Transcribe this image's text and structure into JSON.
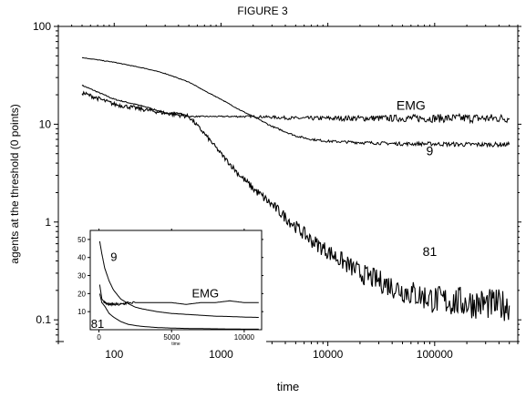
{
  "chart_data": [
    {
      "type": "line",
      "title": "FIGURE 3",
      "xlabel": "time",
      "ylabel": "agents at the threshold (0 points)",
      "x_scale": "log",
      "y_scale": "log",
      "xlim": [
        30,
        600000
      ],
      "ylim": [
        0.06,
        100
      ],
      "grid": false,
      "x_ticks": [
        100,
        1000,
        10000,
        100000
      ],
      "x_tick_labels": [
        "100",
        "1000",
        "10000",
        "100000"
      ],
      "y_ticks": [
        0.1,
        1,
        10,
        100
      ],
      "y_tick_labels": [
        "0.1",
        "1",
        "10",
        "100"
      ],
      "series": [
        {
          "name": "EMG",
          "x": [
            50,
            100,
            200,
            300,
            400,
            500,
            700,
            1000,
            1500,
            2000,
            3000,
            5000,
            10000,
            20000,
            50000,
            100000,
            200000,
            500000
          ],
          "values": [
            25,
            18,
            15,
            13,
            13,
            12,
            12,
            12,
            12,
            12,
            11.8,
            11.5,
            11.5,
            11.5,
            11.5,
            11.5,
            11.5,
            11.5
          ],
          "noise": 0.04,
          "label_x": 60000,
          "label_y": 14
        },
        {
          "name": "9",
          "x": [
            50,
            100,
            200,
            300,
            500,
            700,
            1000,
            1500,
            2000,
            3000,
            5000,
            7000,
            10000,
            20000,
            50000,
            100000,
            200000,
            500000
          ],
          "values": [
            48,
            43,
            37,
            33,
            27,
            22,
            18,
            14,
            12,
            9.5,
            7.6,
            7,
            6.7,
            6.5,
            6.3,
            6.3,
            6.2,
            6.2
          ],
          "noise": 0.02,
          "label_x": 90000,
          "label_y": 4.8
        },
        {
          "name": "81",
          "x": [
            50,
            100,
            200,
            300,
            500,
            700,
            1000,
            1500,
            2000,
            3000,
            5000,
            7000,
            10000,
            20000,
            30000,
            50000,
            100000,
            200000,
            500000
          ],
          "values": [
            21,
            16,
            14,
            13,
            12,
            8,
            5,
            3,
            2.2,
            1.5,
            0.9,
            0.65,
            0.5,
            0.3,
            0.25,
            0.2,
            0.16,
            0.15,
            0.14
          ],
          "noise": 0.14,
          "label_x": 90000,
          "label_y": 0.45
        }
      ]
    },
    {
      "type": "line",
      "title": "",
      "xlabel": "time",
      "ylabel": "",
      "xlim": [
        -600,
        11200
      ],
      "ylim": [
        0,
        55
      ],
      "grid": false,
      "x_ticks": [
        0,
        5000,
        10000
      ],
      "x_tick_labels": [
        "0",
        "5000",
        "10000"
      ],
      "y_ticks": [
        10,
        20,
        30,
        40,
        50
      ],
      "y_tick_labels": [
        "10",
        "20",
        "30",
        "40",
        "50"
      ],
      "series": [
        {
          "name": "EMG",
          "x": [
            50,
            200,
            400,
            700,
            1000,
            1500,
            2000,
            3000,
            4000,
            5000,
            6000,
            7000,
            8000,
            9000,
            10000,
            11000
          ],
          "values": [
            25,
            17,
            15,
            14,
            14,
            14,
            15,
            15,
            15,
            15,
            14,
            15,
            15,
            16,
            15,
            15
          ],
          "label_x": 6400,
          "label_y": 18
        },
        {
          "name": "9",
          "x": [
            50,
            200,
            400,
            700,
            1000,
            1500,
            2000,
            2500,
            3000,
            4000,
            5000,
            6000,
            7000,
            8000,
            9000,
            10000,
            11000
          ],
          "values": [
            49,
            42,
            34,
            27,
            22,
            17,
            14.5,
            12.5,
            11.5,
            10,
            9,
            8.5,
            8,
            7.5,
            7.3,
            7,
            6.8
          ],
          "label_x": 800,
          "label_y": 38
        },
        {
          "name": "81",
          "x": [
            50,
            200,
            400,
            700,
            1000,
            1500,
            2000,
            2500,
            3000,
            4000,
            5000,
            6000,
            7000,
            8000,
            9000,
            10000,
            11000
          ],
          "values": [
            20,
            15,
            13,
            9,
            7,
            4.5,
            3,
            2.3,
            1.8,
            1.2,
            0.9,
            0.7,
            0.6,
            0.5,
            0.4,
            0.3,
            0.3
          ],
          "label_x": -550,
          "label_y": 1
        }
      ]
    }
  ]
}
